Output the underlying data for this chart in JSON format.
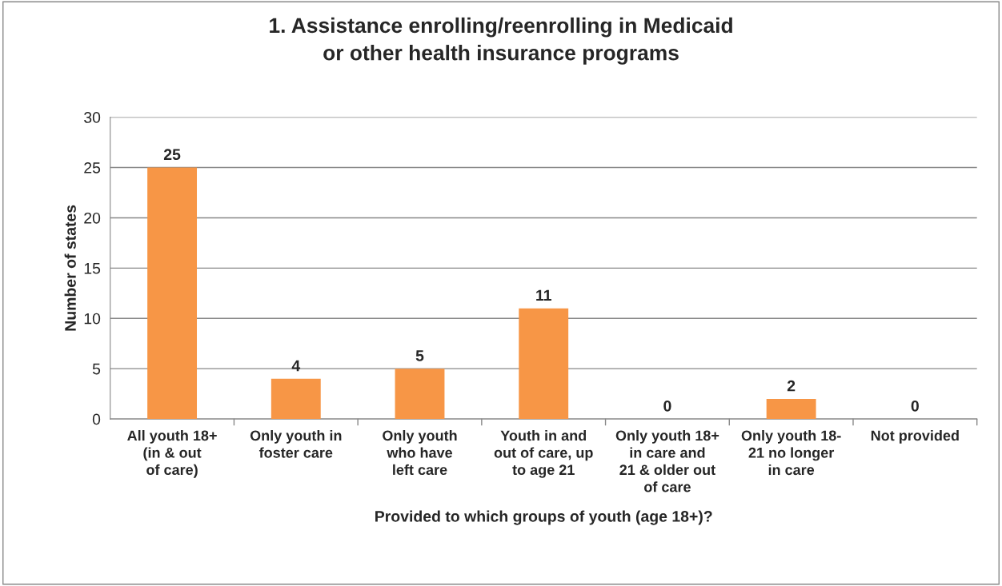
{
  "chart_data": {
    "type": "bar",
    "title": "1. Assistance enrolling/reenrolling in Medicaid\nor other health insurance programs",
    "xlabel": "Provided to which groups of youth (age 18+)?",
    "ylabel": "Number of states",
    "categories": [
      "All youth 18+\n(in & out\nof care)",
      "Only youth in\nfoster care",
      "Only youth\nwho have\nleft care",
      "Youth in and\nout of care, up\nto age 21",
      "Only youth 18+\nin care and\n21 & older out\nof care",
      "Only youth 18-\n21 no longer\nin care",
      "Not provided"
    ],
    "values": [
      25,
      4,
      5,
      11,
      0,
      2,
      0
    ],
    "color": "#f79646",
    "ylim": [
      0,
      30
    ],
    "yticks": [
      0,
      5,
      10,
      15,
      20,
      25,
      30
    ],
    "grid": "y",
    "data_labels": true,
    "legend": false
  }
}
